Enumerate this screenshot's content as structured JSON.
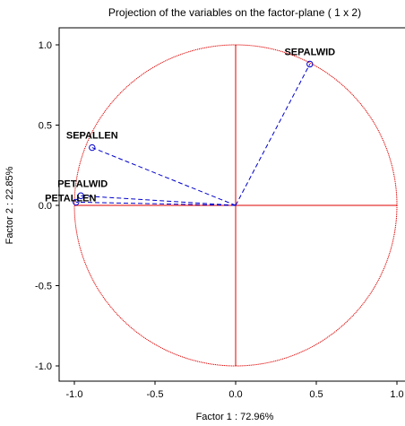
{
  "chart_data": {
    "type": "scatter",
    "title": "Projection of the variables on the factor-plane (  1 x   2)",
    "xlabel": "Factor 1 : 72.96%",
    "ylabel": "Factor 2 : 22.85%",
    "xlim": [
      -1.1,
      1.1
    ],
    "ylim": [
      -1.1,
      1.1
    ],
    "x_ticks": [
      -1.0,
      -0.5,
      0.0,
      0.5,
      1.0
    ],
    "x_tick_labels": [
      "-1.0",
      "-0.5",
      "0.0",
      "0.5",
      "1.0"
    ],
    "y_ticks": [
      1.0,
      0.5,
      0.0,
      -0.5,
      -1.0
    ],
    "y_tick_labels": [
      "1.0",
      "0.5",
      "0.0",
      "-0.5",
      "-1.0"
    ],
    "grid": false,
    "unit_circle": true,
    "points": [
      {
        "name": "SEPALWID",
        "x": 0.46,
        "y": 0.88
      },
      {
        "name": "SEPALLEN",
        "x": -0.89,
        "y": 0.36
      },
      {
        "name": "PETALWID",
        "x": -0.96,
        "y": 0.06
      },
      {
        "name": "PETALLEN",
        "x": -0.99,
        "y": 0.02
      }
    ],
    "colors": {
      "circle": "#e00000",
      "axes_lines": "#e00000",
      "vectors": "#0000cc",
      "markers": "#0000cc"
    }
  }
}
